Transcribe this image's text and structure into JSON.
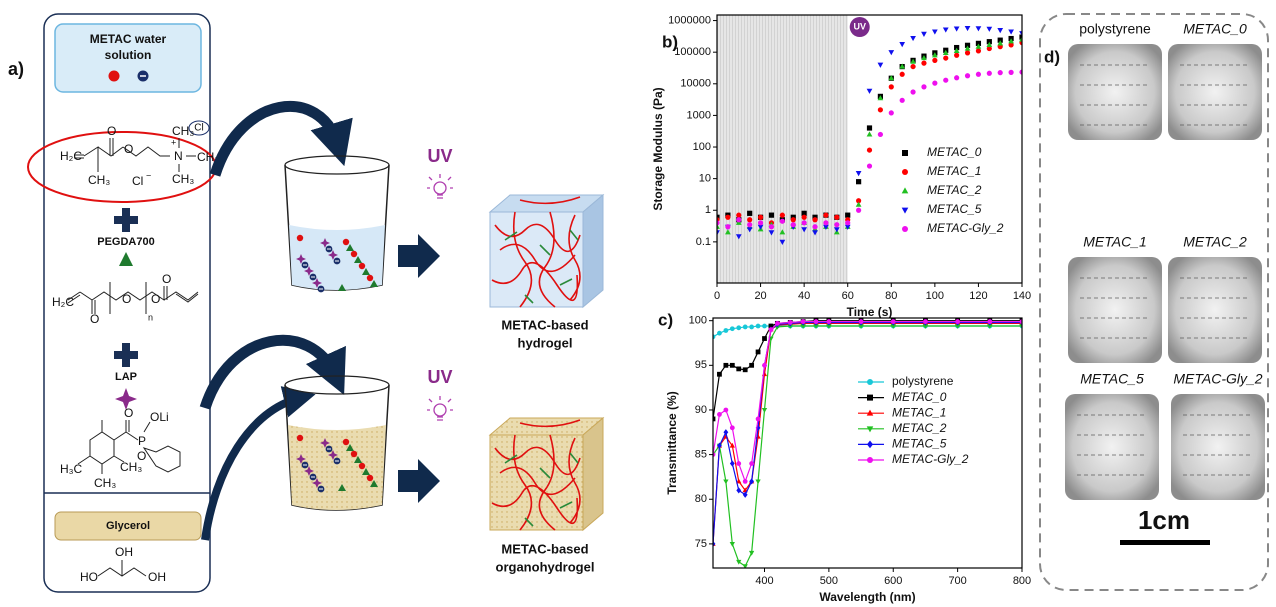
{
  "panel_a": {
    "label": "a)",
    "solution_box": [
      "METAC water",
      "solution"
    ],
    "counterion": "Cl",
    "monomer": [
      "H₂C",
      "CH₃",
      "O",
      "O",
      "N",
      "+",
      "CH₃",
      "CH₃",
      "CH₃",
      "Cl",
      "−"
    ],
    "pegda": "PEGDA700",
    "pegda_structure": [
      "H₂C",
      "O",
      "O",
      "n",
      "O",
      "O"
    ],
    "initiator": "LAP",
    "lap_structure": [
      "O",
      "P",
      "OLi",
      "O",
      "H₃C",
      "CH₃",
      "CH₃"
    ],
    "solvent": "Glycerol",
    "glycerol_structure": [
      "HO",
      "OH",
      "OH"
    ],
    "uv": [
      "UV",
      "UV"
    ],
    "products": [
      [
        "METAC-based",
        "hydrogel"
      ],
      [
        "METAC-based",
        "organohydrogel"
      ]
    ]
  },
  "chart_data": [
    {
      "type": "scatter",
      "panel_label": "b)",
      "x_label": "Time (s)",
      "y_label": "Storage Modulus (Pa)",
      "annotation": "UV",
      "shade": [
        0,
        60
      ],
      "log_y": true,
      "grid": false,
      "legend": "right",
      "xlim": [
        0,
        140
      ],
      "xticks": [
        0,
        20,
        40,
        60,
        80,
        100,
        120,
        140
      ],
      "ylim": [
        0.005,
        1500000
      ],
      "yticks": [
        0.1,
        1,
        10,
        100,
        1000,
        10000,
        100000,
        1000000
      ],
      "x": [
        0,
        5,
        10,
        15,
        20,
        25,
        30,
        35,
        40,
        45,
        50,
        55,
        60,
        65,
        70,
        75,
        80,
        85,
        90,
        95,
        100,
        105,
        110,
        115,
        120,
        125,
        130,
        135,
        140
      ],
      "series": [
        {
          "name": "METAC_0",
          "color": "#000000",
          "marker": "square",
          "values": [
            0.6,
            0.7,
            0.5,
            0.8,
            0.6,
            0.7,
            0.5,
            0.6,
            0.8,
            0.6,
            0.7,
            0.6,
            0.7,
            8,
            400,
            4000,
            15000,
            35000,
            55000,
            75000,
            95000,
            115000,
            140000,
            165000,
            190000,
            215000,
            240000,
            270000,
            300000
          ]
        },
        {
          "name": "METAC_1",
          "color": "#ff0000",
          "marker": "circle",
          "values": [
            0.5,
            0.6,
            0.7,
            0.5,
            0.6,
            0.4,
            0.7,
            0.5,
            0.6,
            0.5,
            0.7,
            0.6,
            0.5,
            2,
            80,
            1500,
            8000,
            20000,
            35000,
            45000,
            55000,
            65000,
            80000,
            95000,
            110000,
            130000,
            150000,
            170000,
            200000
          ]
        },
        {
          "name": "METAC_2",
          "color": "#22c022",
          "marker": "triangle",
          "values": [
            0.3,
            0.2,
            0.4,
            0.3,
            0.25,
            0.35,
            0.2,
            0.3,
            0.4,
            0.25,
            0.3,
            0.2,
            0.3,
            1.5,
            250,
            3500,
            15000,
            35000,
            50000,
            65000,
            80000,
            95000,
            110000,
            130000,
            150000,
            170000,
            190000,
            220000,
            250000
          ]
        },
        {
          "name": "METAC_5",
          "color": "#1010ee",
          "marker": "down-triangle",
          "values": [
            0.2,
            0.3,
            0.15,
            0.25,
            0.3,
            0.2,
            0.1,
            0.3,
            0.25,
            0.2,
            0.3,
            0.25,
            0.3,
            15,
            6000,
            40000,
            100000,
            180000,
            280000,
            380000,
            450000,
            520000,
            560000,
            580000,
            570000,
            550000,
            500000,
            450000,
            400000
          ]
        },
        {
          "name": "METAC-Gly_2",
          "color": "#ee10ee",
          "marker": "circle",
          "values": [
            0.4,
            0.3,
            0.5,
            0.35,
            0.4,
            0.3,
            0.45,
            0.35,
            0.4,
            0.3,
            0.4,
            0.35,
            0.4,
            1,
            25,
            250,
            1200,
            3000,
            5500,
            8000,
            10500,
            13000,
            15500,
            18000,
            20000,
            21500,
            22500,
            23000,
            23500
          ]
        }
      ]
    },
    {
      "type": "line",
      "panel_label": "c)",
      "x_label": "Wavelength (nm)",
      "y_label": "Transmittance (%)",
      "grid": false,
      "legend": "center right",
      "xlim": [
        320,
        800
      ],
      "xticks": [
        400,
        500,
        600,
        700,
        800
      ],
      "ylim": [
        72.3,
        100.3
      ],
      "yticks": [
        75,
        80,
        85,
        90,
        95,
        100
      ],
      "x": [
        320,
        330,
        340,
        350,
        360,
        370,
        380,
        390,
        400,
        410,
        420,
        440,
        460,
        480,
        500,
        550,
        600,
        650,
        700,
        750,
        800
      ],
      "series": [
        {
          "name": "polystyrene",
          "color": "#18c8d8",
          "marker": "circle",
          "values": [
            98.2,
            98.6,
            98.9,
            99.1,
            99.2,
            99.3,
            99.3,
            99.4,
            99.4,
            99.4,
            99.4,
            99.4,
            99.4,
            99.4,
            99.4,
            99.4,
            99.4,
            99.4,
            99.4,
            99.4,
            99.4
          ]
        },
        {
          "name": "METAC_0",
          "color": "#000000",
          "marker": "square",
          "values": [
            89,
            94,
            95,
            95,
            94.6,
            94.5,
            95,
            96.5,
            98,
            99.4,
            99.7,
            99.8,
            99.9,
            100,
            100,
            100,
            100,
            100,
            100,
            100,
            100
          ]
        },
        {
          "name": "METAC_1",
          "color": "#ff0000",
          "marker": "triangle",
          "values": [
            75,
            86,
            87,
            86,
            82,
            81,
            82,
            87,
            94,
            99,
            99.5,
            99.6,
            99.7,
            99.7,
            99.7,
            99.7,
            99.7,
            99.7,
            99.7,
            99.7,
            99.7
          ]
        },
        {
          "name": "METAC_2",
          "color": "#22c022",
          "marker": "down-triangle",
          "values": [
            85,
            86,
            82,
            75,
            73,
            72.5,
            74,
            82,
            90,
            98,
            99.3,
            99.4,
            99.4,
            99.4,
            99.4,
            99.4,
            99.4,
            99.4,
            99.4,
            99.4,
            99.4
          ]
        },
        {
          "name": "METAC_5",
          "color": "#1010ee",
          "marker": "diamond",
          "values": [
            75,
            86,
            87.5,
            84,
            81,
            80.5,
            82,
            88,
            95,
            99,
            99.6,
            99.7,
            99.8,
            99.8,
            99.8,
            99.8,
            99.8,
            99.8,
            99.8,
            99.8,
            99.8
          ]
        },
        {
          "name": "METAC-Gly_2",
          "color": "#ee10ee",
          "marker": "circle",
          "values": [
            85,
            89.5,
            90,
            88,
            84,
            82,
            84,
            89,
            95,
            99,
            99.7,
            99.8,
            99.9,
            99.9,
            99.9,
            99.9,
            99.9,
            99.9,
            99.9,
            99.9,
            99.9
          ]
        }
      ]
    }
  ],
  "panel_d": {
    "label": "d)",
    "samples": [
      "polystyrene",
      "METAC_0",
      "METAC_1",
      "METAC_2",
      "METAC_5",
      "METAC-Gly_2"
    ],
    "scale_bar": "1cm"
  }
}
